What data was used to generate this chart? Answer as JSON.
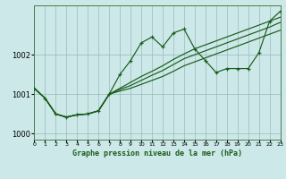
{
  "background_color": "#cce8e8",
  "grid_color": "#99bbbb",
  "line_color": "#1a5c1a",
  "title": "Graphe pression niveau de la mer (hPa)",
  "xlim": [
    0,
    23
  ],
  "ylim": [
    999.85,
    1003.25
  ],
  "yticks": [
    1000,
    1001,
    1002
  ],
  "xtick_labels": [
    "0",
    "1",
    "2",
    "3",
    "4",
    "5",
    "6",
    "7",
    "8",
    "9",
    "10",
    "11",
    "12",
    "13",
    "14",
    "15",
    "16",
    "17",
    "18",
    "19",
    "20",
    "21",
    "22",
    "23"
  ],
  "main_y": [
    1001.15,
    1000.9,
    1000.5,
    1000.42,
    1000.48,
    1000.5,
    1000.58,
    1001.0,
    1001.5,
    1001.85,
    1002.3,
    1002.45,
    1002.2,
    1002.55,
    1002.65,
    1002.15,
    1001.85,
    1001.55,
    1001.65,
    1001.65,
    1001.65,
    1002.05,
    1002.85,
    1003.1
  ],
  "line2_y": [
    1001.15,
    1000.9,
    1000.5,
    1000.42,
    1000.48,
    1000.5,
    1000.58,
    1001.0,
    1001.08,
    1001.15,
    1001.25,
    1001.35,
    1001.45,
    1001.58,
    1001.72,
    1001.82,
    1001.92,
    1002.02,
    1002.12,
    1002.22,
    1002.32,
    1002.42,
    1002.52,
    1002.62
  ],
  "line3_y": [
    1001.15,
    1000.9,
    1000.5,
    1000.42,
    1000.48,
    1000.5,
    1000.58,
    1001.0,
    1001.12,
    1001.22,
    1001.35,
    1001.48,
    1001.6,
    1001.75,
    1001.9,
    1002.0,
    1002.1,
    1002.2,
    1002.3,
    1002.4,
    1002.5,
    1002.6,
    1002.7,
    1002.82
  ],
  "line4_y": [
    1001.15,
    1000.9,
    1000.5,
    1000.42,
    1000.48,
    1000.5,
    1000.58,
    1001.0,
    1001.15,
    1001.3,
    1001.45,
    1001.58,
    1001.72,
    1001.88,
    1002.02,
    1002.15,
    1002.25,
    1002.35,
    1002.45,
    1002.55,
    1002.65,
    1002.75,
    1002.85,
    1002.95
  ]
}
